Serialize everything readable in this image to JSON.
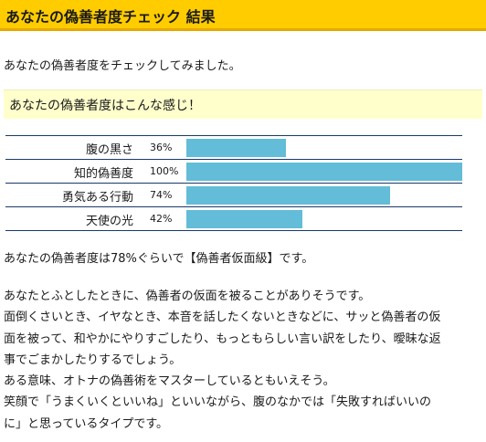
{
  "header": {
    "title": "あなたの偽善者度チェック 結果"
  },
  "intro": "あなたの偽善者度をチェックしてみました。",
  "subhead": "あなたの偽善者度はこんな感じ！",
  "chart_data": {
    "type": "bar",
    "orientation": "horizontal",
    "categories": [
      "腹の黒さ",
      "知的偽善度",
      "勇気ある行動",
      "天使の光"
    ],
    "values": [
      36,
      100,
      74,
      42
    ],
    "value_labels": [
      "36%",
      "100%",
      "74%",
      "42%"
    ],
    "xlim": [
      0,
      100
    ],
    "bar_color": "#63bcd8",
    "grid": false,
    "title": "",
    "xlabel": "",
    "ylabel": ""
  },
  "summary": "あなたの偽善者度は78%ぐらいで【偽善者仮面級】です。",
  "body_lines": [
    "あなたとふとしたときに、偽善者の仮面を被ることがありそうです。",
    "面倒くさいとき、イヤなとき、本音を話したくないときなどに、サッと偽善者の仮",
    "面を被って、和やかにやりすごしたり、もっともらしい言い訳をしたり、曖昧な返",
    "事でごまかしたりするでしょう。",
    "ある意味、オトナの偽善術をマスターしているともいえそう。",
    "笑顔で「うまくいくといいね」といいながら、腹のなかでは「失敗すればいいの",
    "に」と思っているタイプです。"
  ],
  "colors": {
    "header_bg": "#ffcc00",
    "header_border": "#e6a800",
    "subhead_bg": "#ffffcc",
    "chart_rule": "#1a3a66"
  }
}
